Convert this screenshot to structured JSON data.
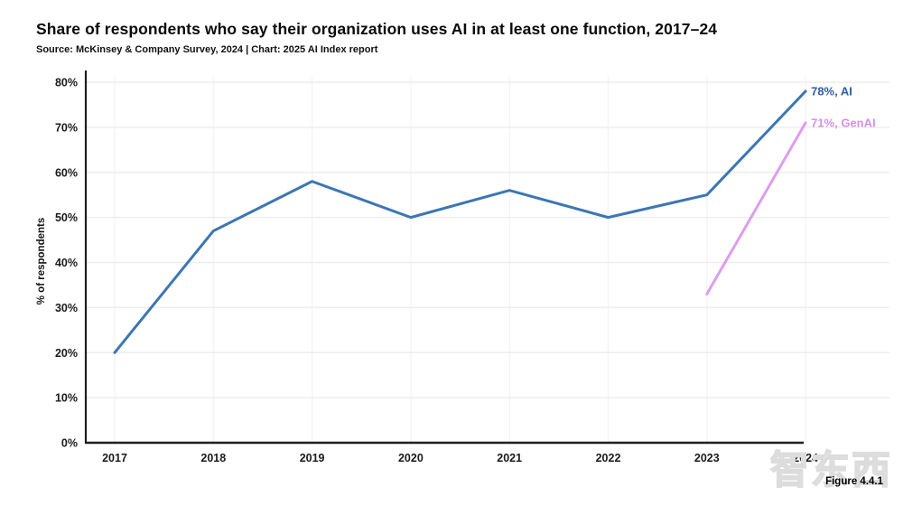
{
  "header": {
    "title": "Share of respondents who say their organization uses AI in at least one function, 2017–24",
    "source": "Source: McKinsey & Company Survey, 2024 | Chart: 2025 AI Index report"
  },
  "figure_caption": "Figure 4.4.1",
  "watermark_text": "智东西",
  "colors": {
    "axis": "#1f1f1f",
    "grid_horizontal": "#f0edec",
    "grid_vertical": "#f7f4f3",
    "tick_label": "#1a1a1a",
    "ai_line": "#3c76b4",
    "ai_label": "#2f5ca4",
    "genai_line": "#dc9def",
    "genai_label": "#d48fe6"
  },
  "chart_data": {
    "type": "line",
    "title": "Share of respondents who say their organization uses AI in at least one function, 2017–24",
    "xlabel": "",
    "ylabel": "% of respondents",
    "x": [
      "2017",
      "2018",
      "2019",
      "2020",
      "2021",
      "2022",
      "2023",
      "2024"
    ],
    "ylim": [
      0,
      80
    ],
    "ytick_step": 10,
    "ytick_suffix": "%",
    "grid": true,
    "legend_position": "end-of-line-labels",
    "series": [
      {
        "name": "AI",
        "values": [
          20,
          47,
          58,
          50,
          56,
          50,
          55,
          78
        ],
        "end_label": "78%, AI"
      },
      {
        "name": "GenAI",
        "values": [
          null,
          null,
          null,
          null,
          null,
          null,
          33,
          71
        ],
        "end_label": "71%, GenAI"
      }
    ]
  }
}
